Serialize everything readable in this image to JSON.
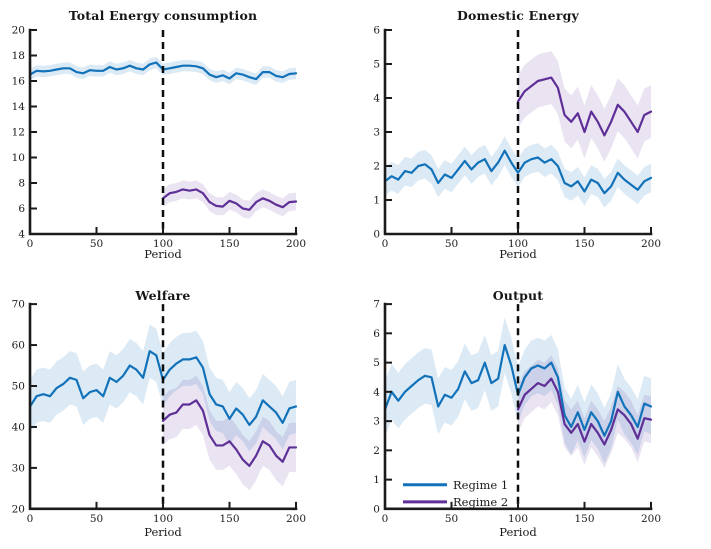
{
  "page": {
    "background": "#ffffff"
  },
  "colors": {
    "regime1_line": "#1272B9",
    "regime1_band": "rgba(18,114,185,0.15)",
    "regime2_line": "#5E2F97",
    "regime2_band": "rgba(94,47,151,0.13)",
    "axis": "#1b1b1b",
    "dashed_line": "#0d0d0d"
  },
  "chart_data": [
    {
      "type": "line",
      "title": "Total Energy consumption",
      "xlabel": "Period",
      "xlim": [
        0,
        200
      ],
      "ylim": [
        4,
        20
      ],
      "xticks": [
        0,
        50,
        100,
        150,
        200
      ],
      "yticks": [
        4,
        6,
        8,
        10,
        12,
        14,
        16,
        18,
        20
      ],
      "vline_x": 100,
      "grid": false,
      "legend": null,
      "series": [
        {
          "name": "Regime 1",
          "color_key": "regime1_line",
          "band_key": "regime1_band",
          "x_start": 0,
          "x_step": 5,
          "band_halfwidth": 0.45,
          "y": [
            16.5,
            16.8,
            16.75,
            16.8,
            16.9,
            17.0,
            17.0,
            16.7,
            16.6,
            16.85,
            16.8,
            16.8,
            17.1,
            16.9,
            17.0,
            17.2,
            17.0,
            16.9,
            17.3,
            17.45,
            16.9,
            17.0,
            17.1,
            17.2,
            17.2,
            17.15,
            17.0,
            16.5,
            16.3,
            16.45,
            16.2,
            16.6,
            16.5,
            16.3,
            16.15,
            16.7,
            16.7,
            16.4,
            16.3,
            16.55,
            16.6
          ]
        },
        {
          "name": "Regime 2",
          "color_key": "regime2_line",
          "band_key": "regime2_band",
          "x_start": 100,
          "x_step": 5,
          "band_halfwidth": 0.7,
          "y": [
            6.8,
            7.2,
            7.3,
            7.5,
            7.4,
            7.5,
            7.2,
            6.5,
            6.2,
            6.15,
            6.6,
            6.4,
            6.0,
            5.9,
            6.5,
            6.8,
            6.6,
            6.3,
            6.1,
            6.5,
            6.55
          ]
        }
      ]
    },
    {
      "type": "line",
      "title": "Domestic Energy",
      "xlabel": "Period",
      "xlim": [
        0,
        200
      ],
      "ylim": [
        0,
        6
      ],
      "xticks": [
        0,
        50,
        100,
        150,
        200
      ],
      "yticks": [
        0,
        1,
        2,
        3,
        4,
        5,
        6
      ],
      "vline_x": 100,
      "grid": false,
      "legend": null,
      "series": [
        {
          "name": "Regime 1",
          "color_key": "regime1_line",
          "band_key": "regime1_band",
          "x_start": 0,
          "x_step": 5,
          "band_halfwidth": 0.42,
          "y": [
            1.55,
            1.7,
            1.6,
            1.85,
            1.8,
            2.0,
            2.05,
            1.9,
            1.5,
            1.75,
            1.65,
            1.9,
            2.15,
            1.9,
            2.1,
            2.2,
            1.85,
            2.1,
            2.45,
            2.1,
            1.8,
            2.1,
            2.2,
            2.25,
            2.1,
            2.2,
            2.0,
            1.5,
            1.4,
            1.55,
            1.25,
            1.6,
            1.5,
            1.2,
            1.4,
            1.8,
            1.6,
            1.45,
            1.3,
            1.55,
            1.65
          ]
        },
        {
          "name": "Regime 2",
          "color_key": "regime2_line",
          "band_key": "regime2_band",
          "x_start": 100,
          "x_step": 5,
          "band_halfwidth": 0.78,
          "y": [
            3.9,
            4.2,
            4.35,
            4.5,
            4.55,
            4.6,
            4.3,
            3.5,
            3.3,
            3.55,
            3.0,
            3.6,
            3.3,
            2.9,
            3.3,
            3.8,
            3.6,
            3.3,
            3.0,
            3.5,
            3.6
          ]
        }
      ]
    },
    {
      "type": "line",
      "title": "Welfare",
      "xlabel": "Period",
      "xlim": [
        0,
        200
      ],
      "ylim": [
        20,
        70
      ],
      "xticks": [
        0,
        50,
        100,
        150,
        200
      ],
      "yticks": [
        20,
        30,
        40,
        50,
        60,
        70
      ],
      "vline_x": 100,
      "grid": false,
      "legend": null,
      "series": [
        {
          "name": "Regime 1",
          "color_key": "regime1_line",
          "band_key": "regime1_band",
          "x_start": 0,
          "x_step": 5,
          "band_halfwidth": 6.5,
          "y": [
            45,
            47.5,
            48,
            47.5,
            49.5,
            50.5,
            52,
            51.5,
            47,
            48.5,
            49,
            47.5,
            52,
            51,
            52.5,
            55,
            54,
            52,
            58.5,
            57.5,
            51.5,
            54,
            55.5,
            56.5,
            56.5,
            57,
            54.5,
            48,
            45.5,
            45,
            42,
            44.5,
            43,
            40.5,
            42.5,
            46.5,
            45,
            43.5,
            41,
            44.5,
            45
          ]
        },
        {
          "name": "Regime 2",
          "color_key": "regime2_line",
          "band_key": "regime2_band",
          "x_start": 100,
          "x_step": 5,
          "band_halfwidth": 6.0,
          "y": [
            41.5,
            43,
            43.5,
            45.5,
            45.5,
            46.5,
            44,
            38,
            35.5,
            35.5,
            36.5,
            34.5,
            32,
            30.5,
            33,
            36.5,
            35.5,
            33,
            31.5,
            35,
            35
          ]
        }
      ]
    },
    {
      "type": "line",
      "title": "Output",
      "xlabel": "Period",
      "xlim": [
        0,
        200
      ],
      "ylim": [
        0,
        7
      ],
      "xticks": [
        0,
        50,
        100,
        150,
        200
      ],
      "yticks": [
        0,
        1,
        2,
        3,
        4,
        5,
        6,
        7
      ],
      "vline_x": 100,
      "grid": false,
      "legend": {
        "position": "southwest",
        "items": [
          "Regime 1",
          "Regime 2"
        ]
      },
      "series": [
        {
          "name": "Regime 1",
          "color_key": "regime1_line",
          "band_key": "regime1_band",
          "x_start": 0,
          "x_step": 5,
          "band_halfwidth": 0.95,
          "y": [
            3.4,
            4.0,
            3.7,
            4.0,
            4.2,
            4.4,
            4.55,
            4.5,
            3.5,
            3.9,
            3.8,
            4.1,
            4.7,
            4.3,
            4.4,
            5.0,
            4.3,
            4.45,
            5.6,
            4.9,
            3.9,
            4.5,
            4.8,
            4.9,
            4.8,
            5.0,
            4.5,
            3.2,
            2.8,
            3.3,
            2.7,
            3.3,
            3.0,
            2.5,
            3.0,
            4.0,
            3.5,
            3.2,
            2.8,
            3.6,
            3.5
          ]
        },
        {
          "name": "Regime 2",
          "color_key": "regime2_line",
          "band_key": "regime2_band",
          "x_start": 100,
          "x_step": 5,
          "band_halfwidth": 0.8,
          "y": [
            3.4,
            3.9,
            4.1,
            4.3,
            4.2,
            4.45,
            4.0,
            2.9,
            2.6,
            2.9,
            2.3,
            2.9,
            2.6,
            2.2,
            2.7,
            3.4,
            3.2,
            2.9,
            2.4,
            3.1,
            3.05
          ]
        }
      ]
    }
  ]
}
